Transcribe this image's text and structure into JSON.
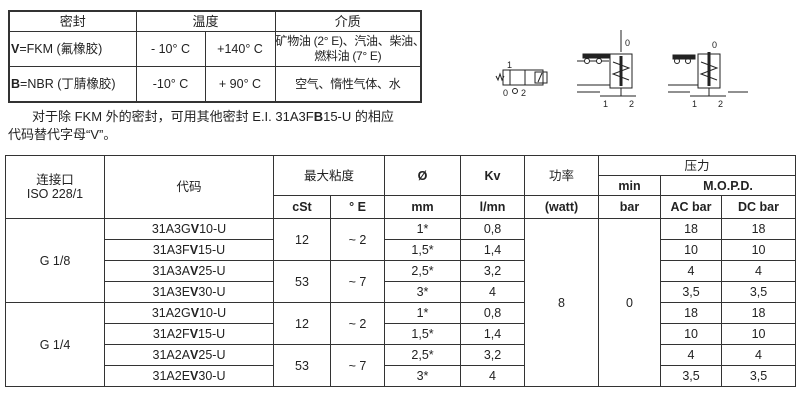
{
  "seal_table": {
    "headers": {
      "seal": "密封",
      "temperature": "温度",
      "medium": "介质"
    },
    "rows": [
      {
        "seal_bold": "V",
        "seal_rest": "=FKM (氟橡胶)",
        "tmin": "- 10° C",
        "tmax": "+140° C",
        "medium_line1": "矿物油 (2° E)、汽油、柴油、",
        "medium_line2": "燃料油 (7° E)"
      },
      {
        "seal_bold": "B",
        "seal_rest": "=NBR (丁腈橡胶)",
        "tmin": "-10° C",
        "tmax": "+ 90° C",
        "medium_line1": "空气、惰性气体、水",
        "medium_line2": ""
      }
    ]
  },
  "note": {
    "line1_a": "对于除 FKM 外的密封，可用其他密封 E.I. 31A3F",
    "line1_bold": "B",
    "line1_b": "15-U 的相应",
    "line2": "代码替代字母“V”。"
  },
  "diagram": {
    "labels": {
      "sym_1": "1",
      "sym_0": "0",
      "sym_2": "2",
      "a_0": "0",
      "a_1": "1",
      "a_2": "2",
      "b_0": "0",
      "b_1": "1",
      "b_2": "2"
    }
  },
  "spec_table": {
    "headers": {
      "port_line1": "连接口",
      "port_line2": "ISO 228/1",
      "code": "代码",
      "viscosity": "最大粘度",
      "diameter": "Ø",
      "kv": "Kv",
      "power": "功率",
      "pressure": "压力",
      "min": "min",
      "mopd": "M.O.P.D.",
      "cst": "cSt",
      "deg_e": "° E",
      "mm": "mm",
      "lmn": "l/mn",
      "watt": "(watt)",
      "bar": "bar",
      "ac_bar": "AC bar",
      "dc_bar": "DC bar"
    },
    "power": "8",
    "min_bar": "0",
    "groups": [
      {
        "port": "G 1/8",
        "visc": [
          {
            "cst": "12",
            "e": "~ 2"
          },
          {
            "cst": "53",
            "e": "~ 7"
          }
        ],
        "rows": [
          {
            "code_a": "31A3G",
            "code_b": "V",
            "code_c": "10-U",
            "d": "1*",
            "kv": "0,8",
            "ac": "18",
            "dc": "18"
          },
          {
            "code_a": "31A3F",
            "code_b": "V",
            "code_c": "15-U",
            "d": "1,5*",
            "kv": "1,4",
            "ac": "10",
            "dc": "10"
          },
          {
            "code_a": "31A3A",
            "code_b": "V",
            "code_c": "25-U",
            "d": "2,5*",
            "kv": "3,2",
            "ac": "4",
            "dc": "4"
          },
          {
            "code_a": "31A3E",
            "code_b": "V",
            "code_c": "30-U",
            "d": "3*",
            "kv": "4",
            "ac": "3,5",
            "dc": "3,5"
          }
        ]
      },
      {
        "port": "G 1/4",
        "visc": [
          {
            "cst": "12",
            "e": "~ 2"
          },
          {
            "cst": "53",
            "e": "~ 7"
          }
        ],
        "rows": [
          {
            "code_a": "31A2G",
            "code_b": "V",
            "code_c": "10-U",
            "d": "1*",
            "kv": "0,8",
            "ac": "18",
            "dc": "18"
          },
          {
            "code_a": "31A2F",
            "code_b": "V",
            "code_c": "15-U",
            "d": "1,5*",
            "kv": "1,4",
            "ac": "10",
            "dc": "10"
          },
          {
            "code_a": "31A2A",
            "code_b": "V",
            "code_c": "25-U",
            "d": "2,5*",
            "kv": "3,2",
            "ac": "4",
            "dc": "4"
          },
          {
            "code_a": "31A2E",
            "code_b": "V",
            "code_c": "30-U",
            "d": "3*",
            "kv": "4",
            "ac": "3,5",
            "dc": "3,5"
          }
        ]
      }
    ]
  }
}
